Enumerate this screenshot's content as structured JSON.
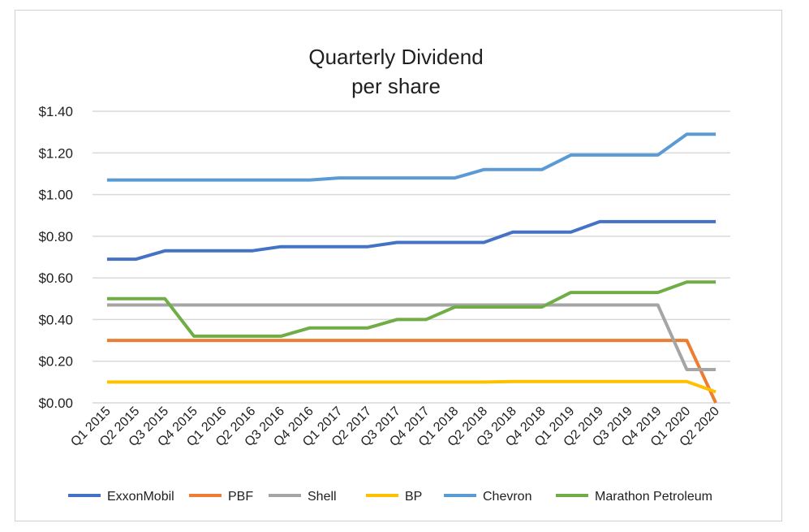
{
  "chart_data": {
    "type": "line",
    "title": [
      "Quarterly Dividend",
      "per share"
    ],
    "categories": [
      "Q1 2015",
      "Q2 2015",
      "Q3 2015",
      "Q4 2015",
      "Q1 2016",
      "Q2 2016",
      "Q3 2016",
      "Q4 2016",
      "Q1 2017",
      "Q2 2017",
      "Q3 2017",
      "Q4 2017",
      "Q1 2018",
      "Q2 2018",
      "Q3 2018",
      "Q4 2018",
      "Q1 2019",
      "Q2 2019",
      "Q3 2019",
      "Q4 2019",
      "Q1 2020",
      "Q2 2020"
    ],
    "ylim": [
      0,
      1.4
    ],
    "yticks": [
      "$0.00",
      "$0.20",
      "$0.40",
      "$0.60",
      "$0.80",
      "$1.00",
      "$1.20",
      "$1.40"
    ],
    "grid": true,
    "legend_position": "bottom",
    "series": [
      {
        "name": "ExxonMobil",
        "color": "#4472c4",
        "values": [
          0.69,
          0.69,
          0.73,
          0.73,
          0.73,
          0.73,
          0.75,
          0.75,
          0.75,
          0.75,
          0.77,
          0.77,
          0.77,
          0.77,
          0.82,
          0.82,
          0.82,
          0.87,
          0.87,
          0.87,
          0.87,
          0.87
        ]
      },
      {
        "name": "PBF",
        "color": "#ed7d31",
        "values": [
          0.3,
          0.3,
          0.3,
          0.3,
          0.3,
          0.3,
          0.3,
          0.3,
          0.3,
          0.3,
          0.3,
          0.3,
          0.3,
          0.3,
          0.3,
          0.3,
          0.3,
          0.3,
          0.3,
          0.3,
          0.3,
          0.0
        ]
      },
      {
        "name": "Shell",
        "color": "#a5a5a5",
        "values": [
          0.47,
          0.47,
          0.47,
          0.47,
          0.47,
          0.47,
          0.47,
          0.47,
          0.47,
          0.47,
          0.47,
          0.47,
          0.47,
          0.47,
          0.47,
          0.47,
          0.47,
          0.47,
          0.47,
          0.47,
          0.16,
          0.16
        ]
      },
      {
        "name": "BP",
        "color": "#ffc000",
        "values": [
          0.1,
          0.1,
          0.1,
          0.1,
          0.1,
          0.1,
          0.1,
          0.1,
          0.1,
          0.1,
          0.1,
          0.1,
          0.1,
          0.1,
          0.1025,
          0.1025,
          0.1025,
          0.1025,
          0.1025,
          0.1025,
          0.1025,
          0.0525
        ]
      },
      {
        "name": "Chevron",
        "color": "#5b9bd5",
        "values": [
          1.07,
          1.07,
          1.07,
          1.07,
          1.07,
          1.07,
          1.07,
          1.07,
          1.08,
          1.08,
          1.08,
          1.08,
          1.08,
          1.12,
          1.12,
          1.12,
          1.19,
          1.19,
          1.19,
          1.19,
          1.29,
          1.29
        ]
      },
      {
        "name": "Marathon Petroleum",
        "color": "#70ad47",
        "values": [
          0.5,
          0.5,
          0.5,
          0.32,
          0.32,
          0.32,
          0.32,
          0.36,
          0.36,
          0.36,
          0.4,
          0.4,
          0.46,
          0.46,
          0.46,
          0.46,
          0.53,
          0.53,
          0.53,
          0.53,
          0.58,
          0.58
        ]
      }
    ]
  }
}
